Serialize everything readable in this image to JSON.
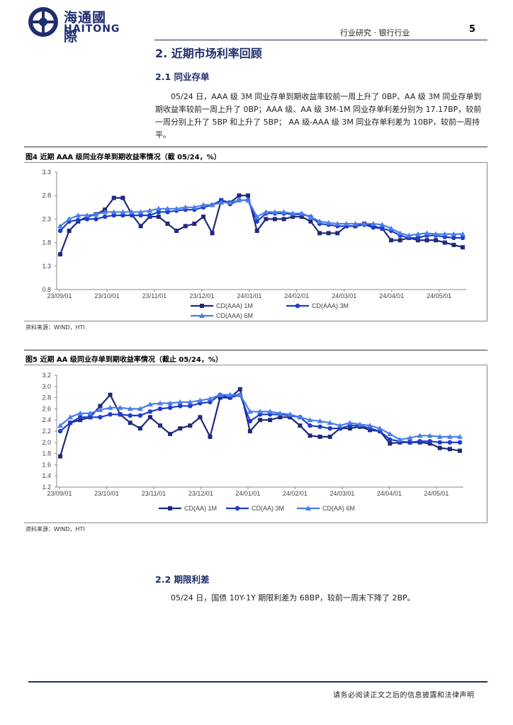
{
  "header": {
    "logo_cn": "海通國際",
    "logo_en": "HAITONG",
    "category": "行业研究 · 银行行业",
    "page_number": "5",
    "brand_color": "#1f2e6e"
  },
  "section": {
    "title": "2.  近期市场利率回顾",
    "sub1_title": "2.1  同业存单",
    "sub1_para": "05/24 日，AAA 级 3M 同业存单到期收益率较前一周上升了 0BP、AA 级 3M 同业存单到期收益率较前一周上升了 0BP；AAA 级、AA 级 3M-1M 同业存单利差分别为 17.17BP，较前一周分别上升了 5BP 和上升了 5BP； AA 级-AAA 级 3M 同业存单利差为 10BP，较前一周持平。",
    "sub2_title": "2.2  期限利差",
    "sub2_para": "05/24 日，国债 10Y-1Y 期限利差为 68BP，较前一周末下降了 2BP。"
  },
  "figure4": {
    "title": "图4  近期 AAA 级同业存单到期收益率情况（截 05/24，%）",
    "source": "资料来源：WIND，HTI"
  },
  "figure5": {
    "title": "图5  近期 AA 级同业存单到期收益率情况（截止 05/24，%）",
    "source": "资料来源：WIND，HTI"
  },
  "footer": {
    "disclaimer": "请务必阅读正文之后的信息披露和法律声明"
  },
  "chart_data": [
    {
      "type": "line",
      "title": "",
      "categories_ticks": [
        "23/09/01",
        "23/10/01",
        "23/11/01",
        "23/12/01",
        "24/01/01",
        "24/02/01",
        "24/03/01",
        "24/04/01",
        "24/05/01"
      ],
      "yticks": [
        "3.3",
        "2.8",
        "2.3",
        "1.8",
        "1.3",
        "0.8"
      ],
      "ylim": [
        0.8,
        3.3
      ],
      "series": [
        {
          "name": "CD(AAA) 1M",
          "color": "#1f2a7a",
          "marker": "square",
          "values": [
            1.55,
            2.05,
            2.25,
            2.35,
            2.4,
            2.5,
            2.75,
            2.75,
            2.4,
            2.15,
            2.35,
            2.35,
            2.2,
            2.05,
            2.15,
            2.2,
            2.35,
            2.0,
            2.7,
            2.65,
            2.8,
            2.8,
            2.05,
            2.3,
            2.3,
            2.3,
            2.35,
            2.35,
            2.25,
            2.0,
            2.0,
            2.0,
            2.15,
            2.15,
            2.2,
            2.15,
            2.1,
            1.85,
            1.85,
            1.9,
            1.85,
            1.85,
            1.85,
            1.8,
            1.75,
            1.7
          ]
        },
        {
          "name": "CD(AAA) 3M",
          "color": "#1e3cd0",
          "marker": "circle",
          "values": [
            2.05,
            2.25,
            2.28,
            2.3,
            2.3,
            2.35,
            2.38,
            2.38,
            2.38,
            2.38,
            2.38,
            2.45,
            2.45,
            2.48,
            2.5,
            2.5,
            2.55,
            2.6,
            2.7,
            2.62,
            2.7,
            2.7,
            2.25,
            2.42,
            2.42,
            2.42,
            2.4,
            2.4,
            2.35,
            2.2,
            2.18,
            2.15,
            2.15,
            2.15,
            2.18,
            2.12,
            2.1,
            2.05,
            1.95,
            1.9,
            1.9,
            1.95,
            1.95,
            1.92,
            1.9,
            1.9
          ]
        },
        {
          "name": "CD(AAA) 6M",
          "color": "#4a7fe8",
          "marker": "triangle",
          "values": [
            2.15,
            2.3,
            2.38,
            2.38,
            2.4,
            2.45,
            2.45,
            2.45,
            2.45,
            2.45,
            2.48,
            2.52,
            2.52,
            2.52,
            2.55,
            2.55,
            2.6,
            2.6,
            2.65,
            2.65,
            2.7,
            2.7,
            2.35,
            2.45,
            2.45,
            2.45,
            2.42,
            2.42,
            2.35,
            2.25,
            2.22,
            2.2,
            2.2,
            2.2,
            2.2,
            2.2,
            2.18,
            2.1,
            2.0,
            1.95,
            1.98,
            2.0,
            1.98,
            1.98,
            1.98,
            1.98
          ]
        }
      ]
    },
    {
      "type": "line",
      "title": "",
      "categories_ticks": [
        "23/09/01",
        "23/10/01",
        "23/11/01",
        "23/12/01",
        "24/01/01",
        "24/02/01",
        "24/03/01",
        "24/04/01",
        "24/05/01"
      ],
      "yticks": [
        "3.2",
        "3.0",
        "2.8",
        "2.6",
        "2.4",
        "2.2",
        "2.0",
        "1.8",
        "1.6",
        "1.4",
        "1.2"
      ],
      "ylim": [
        1.2,
        3.2
      ],
      "series": [
        {
          "name": "CD(AA) 1M",
          "color": "#1f2a7a",
          "marker": "square",
          "values": [
            1.75,
            2.35,
            2.4,
            2.45,
            2.65,
            2.85,
            2.5,
            2.35,
            2.25,
            2.45,
            2.3,
            2.15,
            2.25,
            2.3,
            2.45,
            2.1,
            2.8,
            2.8,
            2.95,
            2.2,
            2.4,
            2.4,
            2.45,
            2.45,
            2.3,
            2.12,
            2.1,
            2.1,
            2.25,
            2.25,
            2.28,
            2.22,
            2.2,
            1.98,
            2.0,
            2.0,
            2.0,
            1.98,
            1.9,
            1.88,
            1.85
          ]
        },
        {
          "name": "CD(AA) 3M",
          "color": "#1e3cd0",
          "marker": "circle",
          "values": [
            2.2,
            2.35,
            2.45,
            2.45,
            2.45,
            2.5,
            2.5,
            2.48,
            2.48,
            2.55,
            2.6,
            2.62,
            2.65,
            2.65,
            2.7,
            2.72,
            2.85,
            2.8,
            2.85,
            2.38,
            2.5,
            2.5,
            2.5,
            2.48,
            2.45,
            2.3,
            2.28,
            2.25,
            2.25,
            2.3,
            2.3,
            2.25,
            2.2,
            2.05,
            2.02,
            2.0,
            2.02,
            2.02,
            2.0,
            2.0,
            2.0
          ]
        },
        {
          "name": "CD(AA) 6M",
          "color": "#4a7fe8",
          "marker": "triangle",
          "values": [
            2.3,
            2.45,
            2.52,
            2.52,
            2.58,
            2.62,
            2.62,
            2.6,
            2.6,
            2.68,
            2.7,
            2.7,
            2.72,
            2.72,
            2.75,
            2.78,
            2.85,
            2.85,
            2.85,
            2.55,
            2.55,
            2.55,
            2.52,
            2.5,
            2.45,
            2.4,
            2.38,
            2.35,
            2.3,
            2.35,
            2.32,
            2.3,
            2.25,
            2.15,
            2.05,
            2.08,
            2.12,
            2.12,
            2.1,
            2.1,
            2.1
          ]
        }
      ]
    }
  ]
}
